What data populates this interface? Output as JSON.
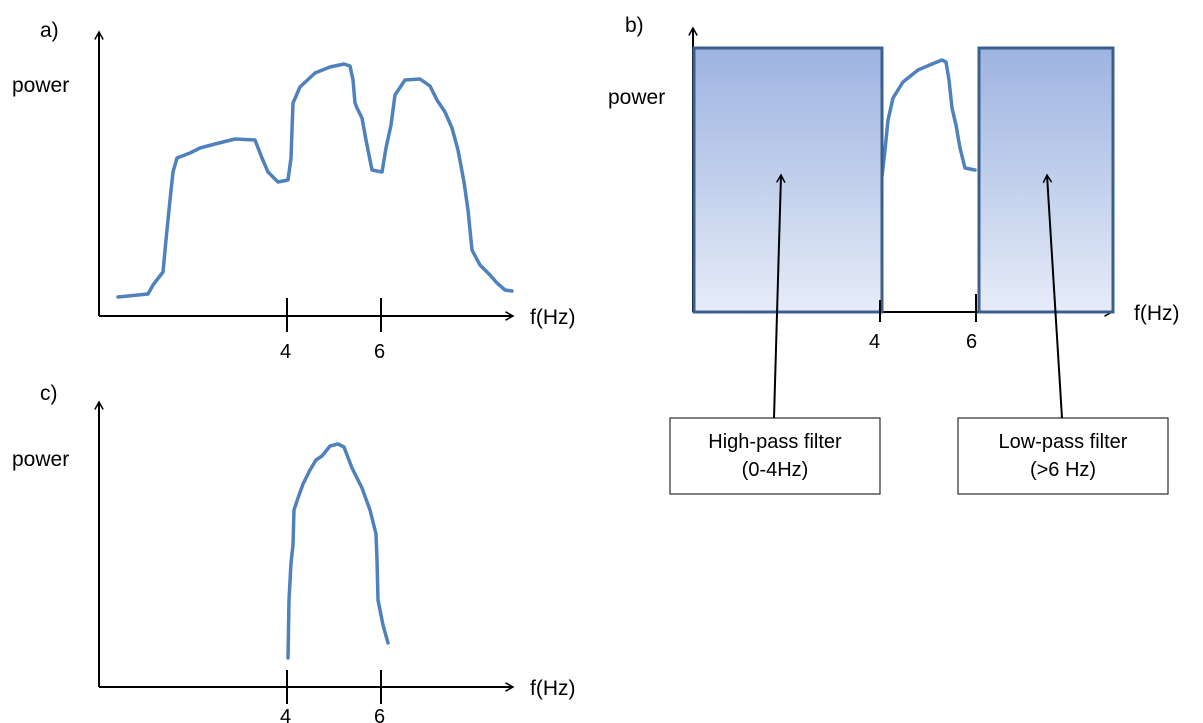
{
  "panel_a": {
    "label": "a)",
    "ylabel": "power",
    "xlabel": "f(Hz)",
    "ticks": [
      "4",
      "6"
    ]
  },
  "panel_b": {
    "label": "b)",
    "ylabel": "power",
    "xlabel": "f(Hz)",
    "ticks": [
      "4",
      "6"
    ],
    "high_pass_box": {
      "line1": "High-pass filter",
      "line2": "(0-4Hz)"
    },
    "low_pass_box": {
      "line1": "Low-pass filter",
      "line2": "(>6 Hz)"
    }
  },
  "panel_c": {
    "label": "c)",
    "ylabel": "power",
    "xlabel": "f(Hz)",
    "ticks": [
      "4",
      "6"
    ]
  },
  "colors": {
    "curve": "#4f81bd",
    "filter_top": "#9db3e0",
    "filter_bottom": "#e6ecf8",
    "filter_border": "#3c5f8e"
  }
}
